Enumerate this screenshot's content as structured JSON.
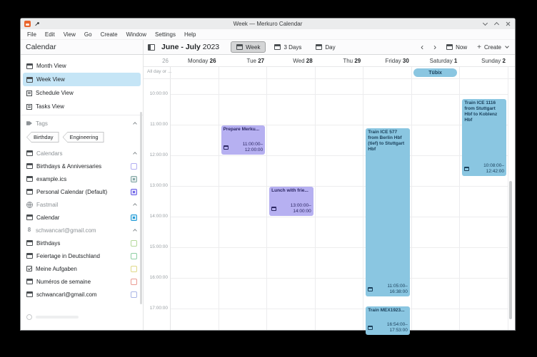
{
  "window": {
    "title": "Week — Merkuro Calendar"
  },
  "menu_bar": {
    "items": [
      "File",
      "Edit",
      "View",
      "Go",
      "Create",
      "Window",
      "Settings",
      "Help"
    ]
  },
  "header": {
    "sidebar_title": "Calendar",
    "month_range": "June - July",
    "year": "2023",
    "view_switcher": [
      {
        "label": "Week",
        "icon": "calendar-week-icon",
        "active": true
      },
      {
        "label": "3 Days",
        "icon": "calendar-days-icon",
        "active": false
      },
      {
        "label": "Day",
        "icon": "calendar-day-icon",
        "active": false
      }
    ],
    "prev_glyph": "‹",
    "next_glyph": "›",
    "now_label": "Now",
    "create_label": "Create"
  },
  "sidebar": {
    "views": [
      {
        "label": "Month View",
        "icon": "calendar-month-icon",
        "active": false
      },
      {
        "label": "Week View",
        "icon": "calendar-week-icon",
        "active": true
      },
      {
        "label": "Schedule View",
        "icon": "schedule-list-icon",
        "active": false
      },
      {
        "label": "Tasks View",
        "icon": "tasks-list-icon",
        "active": false
      }
    ],
    "sections": [
      {
        "title": "Tags",
        "icon": "tag-icon",
        "tags": [
          "Birthday",
          "Engineering"
        ]
      },
      {
        "title": "Calendars",
        "icon": "calendar-icon",
        "items": [
          {
            "label": "Birthdays & Anniversaries",
            "icon": "calendar-icon",
            "checked": false,
            "color": "#b3aef2"
          },
          {
            "label": "example.ics",
            "icon": "calendar-icon",
            "checked": true,
            "color": "#7fa5a2"
          },
          {
            "label": "Personal Calendar (Default)",
            "icon": "calendar-icon",
            "checked": true,
            "color": "#6a5fe6"
          }
        ]
      },
      {
        "title": "Fastmail",
        "icon": "globe-icon",
        "items": [
          {
            "label": "Calendar",
            "icon": "calendar-icon",
            "checked": true,
            "color": "#1d99d6"
          }
        ]
      },
      {
        "title": "schwancarl@gmail.com",
        "icon": "google-account-icon",
        "items": [
          {
            "label": "Birthdays",
            "icon": "calendar-icon",
            "checked": false,
            "color": "#b5d99a"
          },
          {
            "label": "Feiertage in Deutschland",
            "icon": "calendar-icon",
            "checked": false,
            "color": "#8ecfa3"
          },
          {
            "label": "Meine Aufgaben",
            "icon": "task-check-icon",
            "checked": false,
            "color": "#e0d988"
          },
          {
            "label": "Numéros de semaine",
            "icon": "calendar-icon",
            "checked": false,
            "color": "#ea9a92"
          },
          {
            "label": "schwancarl@gmail.com",
            "icon": "calendar-icon",
            "checked": false,
            "color": "#a9b5e6"
          }
        ]
      }
    ]
  },
  "calendar": {
    "week_number": "26",
    "days": [
      {
        "name": "Monday",
        "number": "26"
      },
      {
        "name": "Tue",
        "number": "27"
      },
      {
        "name": "Wed",
        "number": "28"
      },
      {
        "name": "Thu",
        "number": "29"
      },
      {
        "name": "Friday",
        "number": "30"
      },
      {
        "name": "Saturday",
        "number": "1"
      },
      {
        "name": "Sunday",
        "number": "2"
      }
    ],
    "allday_label": "All day or ...",
    "hour_labels": [
      "10:00:00",
      "11:00:00",
      "12:00:00",
      "13:00:00",
      "14:00:00",
      "15:00:00",
      "16:00:00",
      "17:00:00"
    ],
    "events": [
      {
        "title": "Tübix",
        "day_index": 5,
        "all_day": true,
        "color_key": "blue"
      },
      {
        "title": "Prepare Merku...",
        "day_index": 1,
        "start": "11:00:00",
        "end": "12:00:00",
        "color_key": "purple"
      },
      {
        "title": "Lunch with frie...",
        "day_index": 2,
        "start": "13:00:00",
        "end": "14:00:00",
        "color_key": "purple"
      },
      {
        "title": "Train ICE 577 from Berlin Hbf (tief) to Stuttgart Hbf",
        "day_index": 4,
        "start": "11:05:00",
        "end": "16:38:00",
        "color_key": "blue"
      },
      {
        "title": "Train MEX1923...",
        "day_index": 4,
        "start": "16:54:00",
        "end": "17:53:00",
        "color_key": "blue"
      },
      {
        "title": "Train ICE 1116 from Stuttgart Hbf to Koblenz Hbf",
        "day_index": 6,
        "start": "10:08:00",
        "end": "12:42:00",
        "color_key": "blue"
      }
    ]
  },
  "colors": {
    "event_blue_bg": "#8ac6e1",
    "event_blue_text": "#1a3f5a",
    "event_purple_bg": "#b6b0f1",
    "event_purple_text": "#2c2763",
    "selected_view_bg": "#c5e5f6",
    "active_button_bg": "#d4d5d6",
    "titlebar_bg": "#ebeced"
  }
}
